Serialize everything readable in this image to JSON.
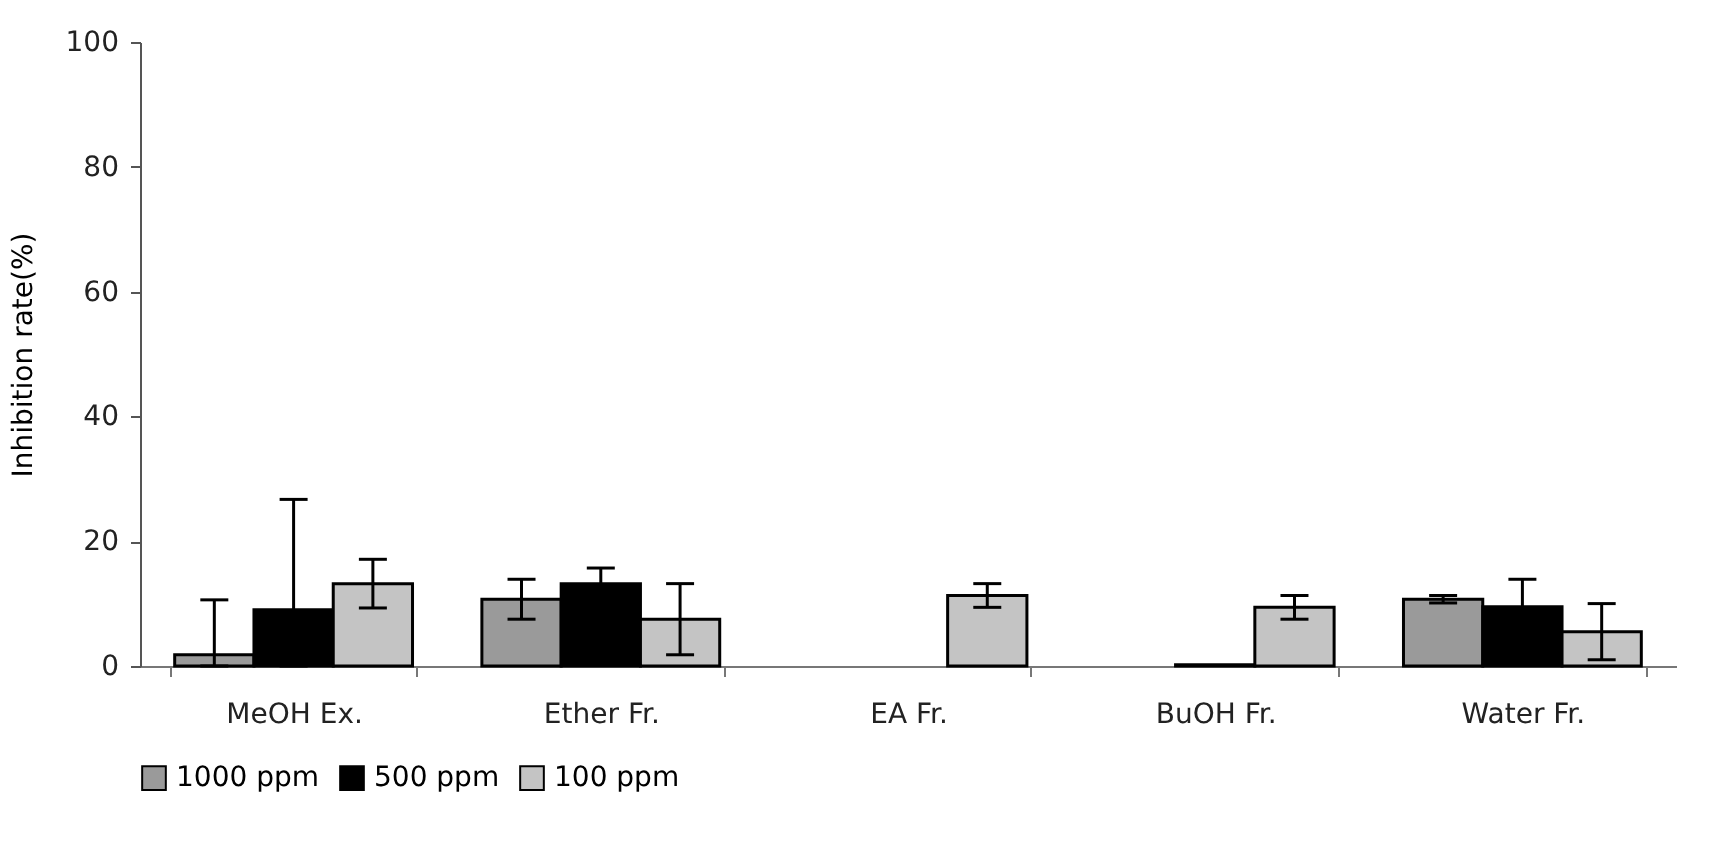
{
  "chart_data": {
    "type": "bar",
    "ylabel": "Inhibition rate(%)",
    "categories": [
      "MeOH Ex.",
      "Ether Fr.",
      "EA Fr.",
      "BuOH Fr.",
      "Water Fr."
    ],
    "series": [
      {
        "name": "1000 ppm",
        "color": "#9a9a9a",
        "values": [
          1.8,
          10.7,
          null,
          null,
          10.7
        ],
        "errors": [
          [
            0,
            10.6
          ],
          3.2,
          null,
          null,
          0.6
        ]
      },
      {
        "name": "500 ppm",
        "color": "#000000",
        "values": [
          9.0,
          13.2,
          null,
          0.2,
          9.5
        ],
        "errors": [
          [
            0,
            26.7
          ],
          2.5,
          null,
          null,
          4.4
        ]
      },
      {
        "name": "100 ppm",
        "color": "#c4c4c4",
        "values": [
          13.2,
          7.5,
          11.3,
          9.4,
          5.5
        ],
        "errors": [
          3.9,
          5.7,
          1.9,
          1.9,
          4.5
        ]
      }
    ],
    "ylim": [
      0,
      100
    ],
    "yticks": [
      0,
      20,
      40,
      60,
      80,
      100
    ],
    "grid": false,
    "legend": "bottom"
  }
}
